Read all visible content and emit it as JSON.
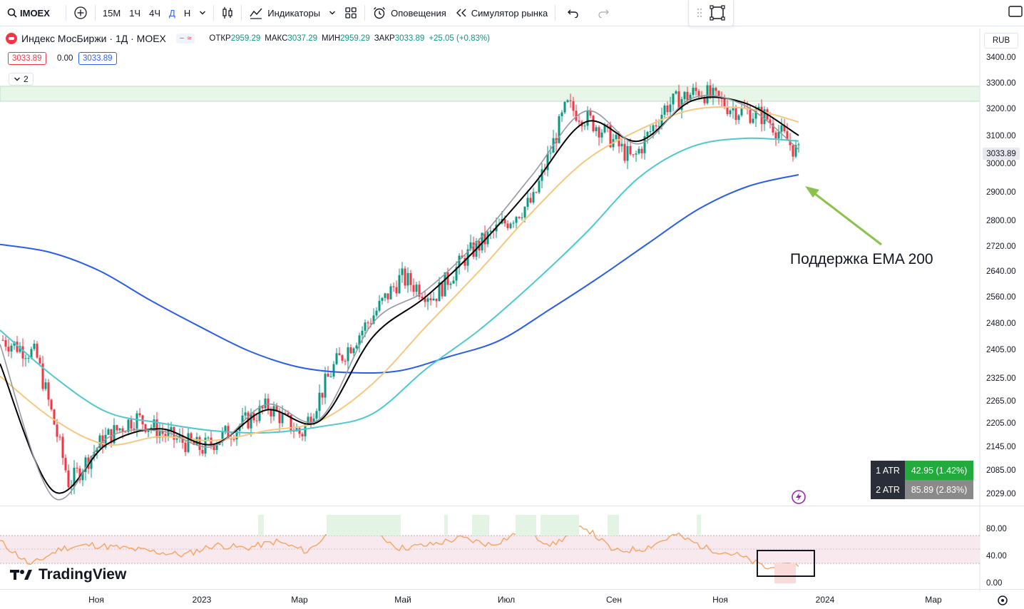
{
  "toolbar": {
    "symbol": "IMOEX",
    "intervals": [
      "15M",
      "1Ч",
      "4Ч",
      "Д",
      "Н"
    ],
    "active_interval": "Д",
    "indicators_label": "Индикаторы",
    "alerts_label": "Оповещения",
    "replay_label": "Симулятор рынка"
  },
  "legend": {
    "title": "Индекс МосБиржи · 1Д · MOEX",
    "open_label": "ОТКР",
    "open": "2959.29",
    "high_label": "МАКС",
    "high": "3037.29",
    "low_label": "МИН",
    "low": "2959.29",
    "close_label": "ЗАКР",
    "close": "3033.89",
    "change": "+25.05 (+0.83%)",
    "bid": "3033.89",
    "spread": "0.00",
    "ask": "3033.89",
    "indicators_count": "2"
  },
  "currency": "RUB",
  "current_price": "3033.89",
  "annotation": "Поддержка EMA 200",
  "brand": "TradingView",
  "atr": [
    {
      "label": "1 ATR",
      "value": "42.95 (1.42%)",
      "color": "#22ab3c"
    },
    {
      "label": "2 ATR",
      "value": "85.89 (2.83%)",
      "color": "#8a8a8a"
    }
  ],
  "chart_data": {
    "type": "line",
    "price_axis_ticks": [
      "3400.00",
      "3300.00",
      "3200.00",
      "3100.00",
      "3000.00",
      "2900.00",
      "2800.00",
      "2720.00",
      "2640.00",
      "2560.00",
      "2480.00",
      "2405.00",
      "2325.00",
      "2265.00",
      "2205.00",
      "2145.00",
      "2085.00",
      "2029.00"
    ],
    "rsi_axis_ticks": [
      "80.00",
      "40.00",
      "0.00"
    ],
    "time_axis_labels": [
      "Ноя",
      "2023",
      "Мар",
      "Май",
      "Июл",
      "Сен",
      "Ноя",
      "2024",
      "Мар"
    ],
    "series": [
      {
        "color": "#2a5ee8",
        "values": [
          2725,
          2700,
          2640,
          2550,
          2470,
          2400,
          2355,
          2340,
          2345,
          2385,
          2430,
          2520,
          2620,
          2730,
          2840,
          2920,
          2960
        ]
      },
      {
        "color": "#4dc9cf",
        "values": [
          2460,
          2330,
          2235,
          2205,
          2185,
          2180,
          2195,
          2230,
          2350,
          2460,
          2600,
          2760,
          2950,
          3060,
          3090,
          3080
        ]
      },
      {
        "color": "#f7c77e",
        "values": [
          2330,
          2215,
          2150,
          2170,
          2160,
          2185,
          2210,
          2310,
          2470,
          2640,
          2830,
          3010,
          3120,
          3195,
          3200,
          3150
        ]
      },
      {
        "color": "#000000",
        "values": [
          2365,
          2035,
          2150,
          2190,
          2150,
          2240,
          2210,
          2440,
          2560,
          2720,
          2920,
          3150,
          3080,
          3230,
          3220,
          3100
        ]
      },
      {
        "color": "#9598a1",
        "values": [
          2420,
          2020,
          2165,
          2185,
          2145,
          2255,
          2215,
          2480,
          2580,
          2740,
          2960,
          3190,
          3070,
          3240,
          3210,
          3050
        ]
      }
    ],
    "candles_close": [
      2432,
      2390,
      2050,
      2160,
      2220,
      2170,
      2140,
      2190,
      2250,
      2175,
      2360,
      2480,
      2620,
      2560,
      2690,
      2780,
      2870,
      3210,
      3130,
      3010,
      3210,
      3270,
      3200,
      3170,
      3033
    ]
  }
}
